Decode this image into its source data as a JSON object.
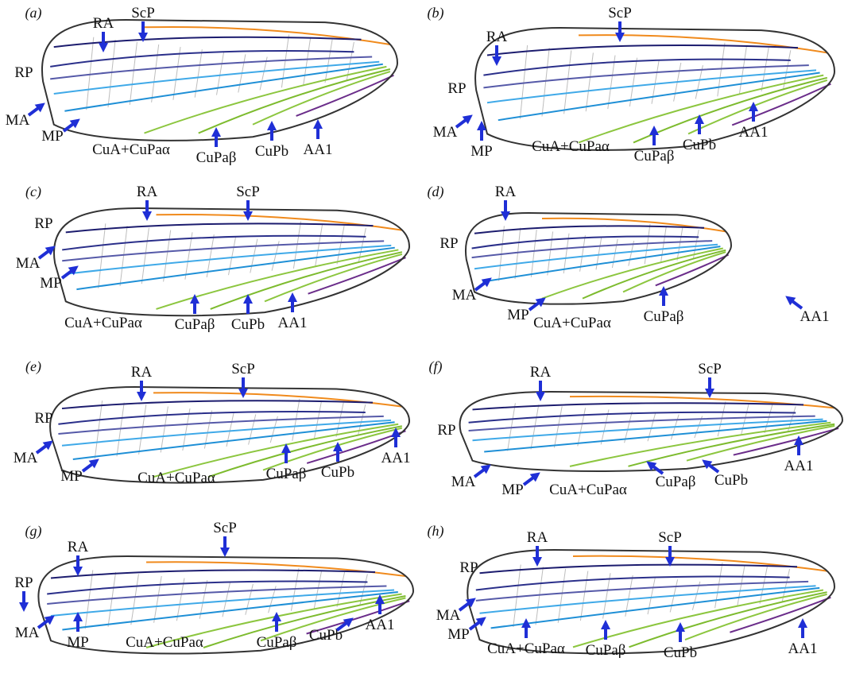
{
  "panels": [
    {
      "label": "(a)",
      "veins": [
        "RA",
        "ScP",
        "RP",
        "MA",
        "MP",
        "CuA+CuPaα",
        "CuPaβ",
        "CuPb",
        "AA1"
      ]
    },
    {
      "label": "(b)",
      "veins": [
        "ScP",
        "RA",
        "RP",
        "MA",
        "MP",
        "CuA+CuPaα",
        "CuPaβ",
        "CuPb",
        "AA1"
      ]
    },
    {
      "label": "(c)",
      "veins": [
        "RA",
        "ScP",
        "RP",
        "MA",
        "MP",
        "CuA+CuPaα",
        "CuPaβ",
        "CuPb",
        "AA1"
      ]
    },
    {
      "label": "(d)",
      "veins": [
        "RA",
        "RP",
        "MA",
        "MP",
        "CuA+CuPaα",
        "CuPaβ",
        "AA1"
      ]
    },
    {
      "label": "(e)",
      "veins": [
        "RA",
        "ScP",
        "RP",
        "MA",
        "MP",
        "CuA+CuPaα",
        "CuPaβ",
        "CuPb",
        "AA1"
      ]
    },
    {
      "label": "(f)",
      "veins": [
        "RA",
        "ScP",
        "RP",
        "MA",
        "MP",
        "CuA+CuPaα",
        "CuPaβ",
        "CuPb",
        "AA1"
      ]
    },
    {
      "label": "(g)",
      "veins": [
        "RA",
        "ScP",
        "RP",
        "MA",
        "MP",
        "CuA+CuPaα",
        "CuPaβ",
        "CuPb",
        "AA1"
      ]
    },
    {
      "label": "(h)",
      "veins": [
        "RA",
        "ScP",
        "RP",
        "MA",
        "MP",
        "CuA+CuPaα",
        "CuPaβ",
        "CuPb",
        "AA1"
      ]
    }
  ]
}
